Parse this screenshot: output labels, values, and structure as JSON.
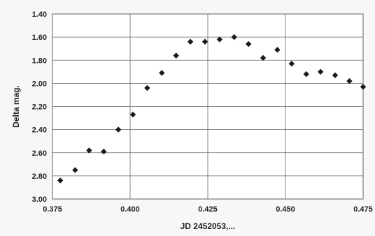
{
  "chart_data": {
    "type": "scatter",
    "title": "",
    "xlabel": "JD 2452053,...",
    "ylabel": "Delta mag.",
    "xlim": [
      0.375,
      0.475
    ],
    "ylim": [
      1.4,
      3.0
    ],
    "y_inverted": true,
    "grid": true,
    "legend": "none",
    "x_ticks": [
      "0.375",
      "0.400",
      "0.425",
      "0.450",
      "0.475"
    ],
    "y_ticks": [
      "1.40",
      "1.60",
      "1.80",
      "2.00",
      "2.20",
      "2.40",
      "2.60",
      "2.80",
      "3.00"
    ],
    "marker_color": "#1a1a1a",
    "series": [
      {
        "points": [
          {
            "x": 0.3775,
            "y": 2.84
          },
          {
            "x": 0.3823,
            "y": 2.75
          },
          {
            "x": 0.3868,
            "y": 2.58
          },
          {
            "x": 0.3915,
            "y": 2.59
          },
          {
            "x": 0.3962,
            "y": 2.4
          },
          {
            "x": 0.4009,
            "y": 2.27
          },
          {
            "x": 0.4055,
            "y": 2.04
          },
          {
            "x": 0.4102,
            "y": 1.91
          },
          {
            "x": 0.4148,
            "y": 1.76
          },
          {
            "x": 0.4194,
            "y": 1.64
          },
          {
            "x": 0.4241,
            "y": 1.64
          },
          {
            "x": 0.4288,
            "y": 1.62
          },
          {
            "x": 0.4335,
            "y": 1.6
          },
          {
            "x": 0.4381,
            "y": 1.66
          },
          {
            "x": 0.4428,
            "y": 1.78
          },
          {
            "x": 0.4474,
            "y": 1.71
          },
          {
            "x": 0.452,
            "y": 1.83
          },
          {
            "x": 0.4567,
            "y": 1.92
          },
          {
            "x": 0.4613,
            "y": 1.9
          },
          {
            "x": 0.466,
            "y": 1.93
          },
          {
            "x": 0.4706,
            "y": 1.98
          },
          {
            "x": 0.475,
            "y": 2.03
          }
        ]
      }
    ]
  }
}
